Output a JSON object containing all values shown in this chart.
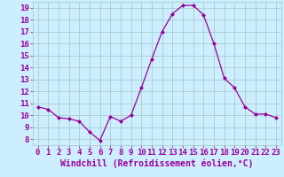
{
  "x": [
    0,
    1,
    2,
    3,
    4,
    5,
    6,
    7,
    8,
    9,
    10,
    11,
    12,
    13,
    14,
    15,
    16,
    17,
    18,
    19,
    20,
    21,
    22,
    23
  ],
  "y": [
    10.7,
    10.5,
    9.8,
    9.7,
    9.5,
    8.6,
    7.9,
    9.9,
    9.5,
    10.0,
    12.3,
    14.7,
    17.0,
    18.5,
    19.2,
    19.2,
    18.4,
    16.0,
    13.1,
    12.3,
    10.7,
    10.1,
    10.1,
    9.8
  ],
  "line_color": "#990099",
  "marker": "D",
  "marker_size": 2,
  "bg_color": "#cceeff",
  "grid_color": "#aacccc",
  "xlabel": "Windchill (Refroidissement éolien,°C)",
  "xlim": [
    -0.5,
    23.5
  ],
  "ylim": [
    7.5,
    19.5
  ],
  "yticks": [
    8,
    9,
    10,
    11,
    12,
    13,
    14,
    15,
    16,
    17,
    18,
    19
  ],
  "xticks": [
    0,
    1,
    2,
    3,
    4,
    5,
    6,
    7,
    8,
    9,
    10,
    11,
    12,
    13,
    14,
    15,
    16,
    17,
    18,
    19,
    20,
    21,
    22,
    23
  ],
  "font_color": "#990099",
  "font_size": 6.5,
  "xlabel_font_size": 7
}
